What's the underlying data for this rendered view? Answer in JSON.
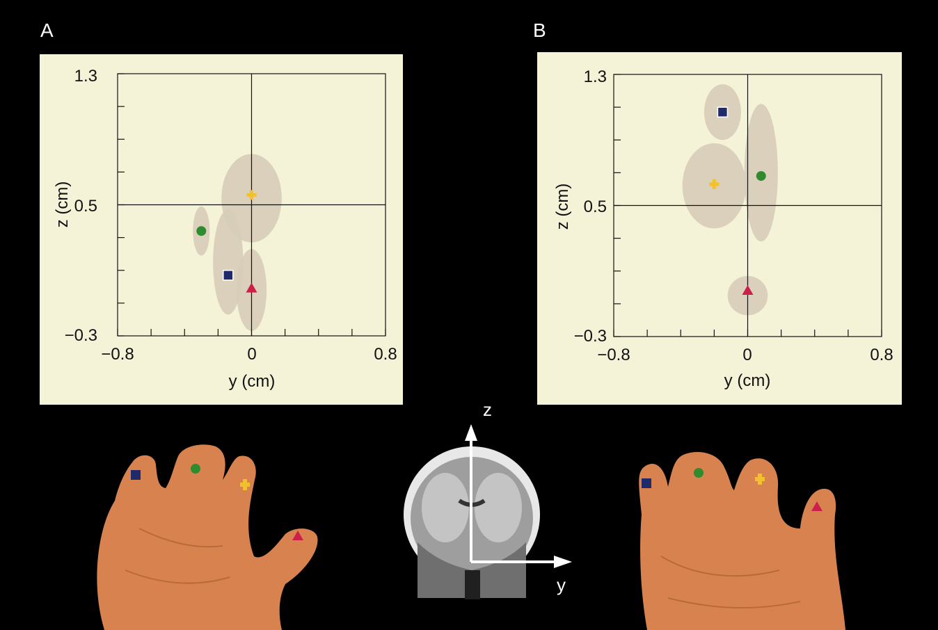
{
  "panels": [
    {
      "letter": "A",
      "xlabel": "y (cm)",
      "ylabel": "z (cm)",
      "xticks": [
        "−0.8",
        "0",
        "0.8"
      ],
      "yticks": [
        "1.3",
        "0.5",
        "−0.3"
      ]
    },
    {
      "letter": "B",
      "xlabel": "y (cm)",
      "ylabel": "z (cm)",
      "xticks": [
        "−0.8",
        "0",
        "0.8"
      ],
      "yticks": [
        "1.3",
        "0.5",
        "−0.3"
      ]
    }
  ],
  "axes_diagram": {
    "z_label": "z",
    "y_label": "y"
  },
  "colors": {
    "background": "#000000",
    "plot_bg": "#f5f3d7",
    "ellipse": "#d7cdb9",
    "square": "#1f2a6b",
    "circle": "#2e8b2e",
    "cross": "#f2c12e",
    "triangle": "#cc1f4a",
    "hand": "#d9804f"
  },
  "chart_data": [
    {
      "type": "scatter",
      "title": "",
      "xlabel": "y (cm)",
      "ylabel": "z (cm)",
      "xlim": [
        -0.8,
        0.8
      ],
      "ylim": [
        -0.3,
        1.3
      ],
      "grid": false,
      "crosshair": {
        "x": 0,
        "y": 0.5
      },
      "points": [
        {
          "marker": "square",
          "x": -0.14,
          "y": 0.07,
          "ellipse_rx": 0.09,
          "ellipse_ry": 0.32,
          "ellipse_cx": -0.14,
          "ellipse_cy": 0.15
        },
        {
          "marker": "circle",
          "x": -0.3,
          "y": 0.34,
          "ellipse_rx": 0.05,
          "ellipse_ry": 0.15,
          "ellipse_cx": -0.3,
          "ellipse_cy": 0.34
        },
        {
          "marker": "cross",
          "x": 0.0,
          "y": 0.56,
          "ellipse_rx": 0.18,
          "ellipse_ry": 0.27,
          "ellipse_cx": 0.0,
          "ellipse_cy": 0.54
        },
        {
          "marker": "triangle",
          "x": 0.0,
          "y": -0.01,
          "ellipse_rx": 0.09,
          "ellipse_ry": 0.25,
          "ellipse_cx": 0.0,
          "ellipse_cy": -0.02
        }
      ]
    },
    {
      "type": "scatter",
      "title": "",
      "xlabel": "y (cm)",
      "ylabel": "z (cm)",
      "xlim": [
        -0.8,
        0.8
      ],
      "ylim": [
        -0.3,
        1.3
      ],
      "grid": false,
      "crosshair": {
        "x": 0,
        "y": 0.5
      },
      "points": [
        {
          "marker": "square",
          "x": -0.15,
          "y": 1.07,
          "ellipse_rx": 0.11,
          "ellipse_ry": 0.17,
          "ellipse_cx": -0.15,
          "ellipse_cy": 1.07
        },
        {
          "marker": "circle",
          "x": 0.08,
          "y": 0.68,
          "ellipse_rx": 0.1,
          "ellipse_ry": 0.42,
          "ellipse_cx": 0.08,
          "ellipse_cy": 0.7
        },
        {
          "marker": "cross",
          "x": -0.2,
          "y": 0.63,
          "ellipse_rx": 0.19,
          "ellipse_ry": 0.26,
          "ellipse_cx": -0.2,
          "ellipse_cy": 0.62
        },
        {
          "marker": "triangle",
          "x": 0.0,
          "y": -0.02,
          "ellipse_rx": 0.12,
          "ellipse_ry": 0.12,
          "ellipse_cx": 0.0,
          "ellipse_cy": -0.05
        }
      ]
    }
  ]
}
